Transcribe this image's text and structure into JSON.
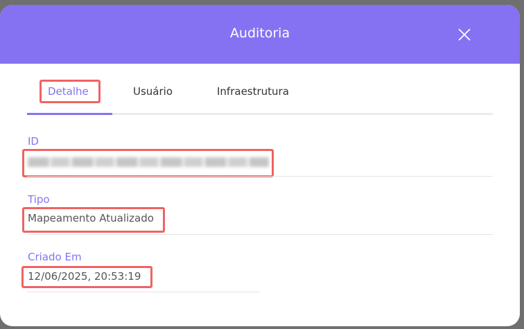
{
  "modal": {
    "title": "Auditoria",
    "close_icon": "close-icon",
    "accent_color": "#8572f2",
    "highlight_color": "#f06262"
  },
  "tabs": [
    {
      "label": "Detalhe",
      "active": true
    },
    {
      "label": "Usuário",
      "active": false
    },
    {
      "label": "Infraestrutura",
      "active": false
    }
  ],
  "fields": {
    "id": {
      "label": "ID"
    },
    "tipo": {
      "label": "Tipo",
      "value": "Mapeamento Atualizado"
    },
    "criado_em": {
      "label": "Criado Em",
      "value": "12/06/2025, 20:53:19"
    }
  }
}
